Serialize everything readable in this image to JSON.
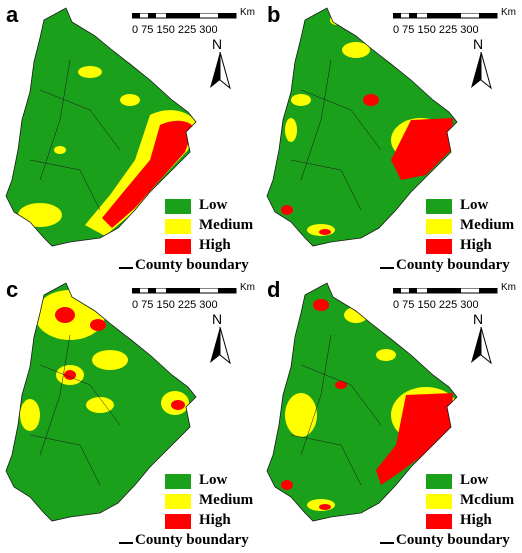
{
  "colors": {
    "low": "#1aa01a",
    "medium": "#ffff00",
    "high": "#ff0000",
    "boundary": "#1a1a1a"
  },
  "scale_bar": {
    "ticks": "0   75   150  225  300",
    "unit": "Km"
  },
  "north_arrow": {
    "label": "N"
  },
  "legend": {
    "low": "Low",
    "medium": "Medium",
    "high": "High",
    "county_boundary": "County boundary"
  },
  "legend_panel_d": {
    "medium": "Mcdium"
  },
  "panels": [
    {
      "label": "a"
    },
    {
      "label": "b"
    },
    {
      "label": "c"
    },
    {
      "label": "d"
    }
  ]
}
